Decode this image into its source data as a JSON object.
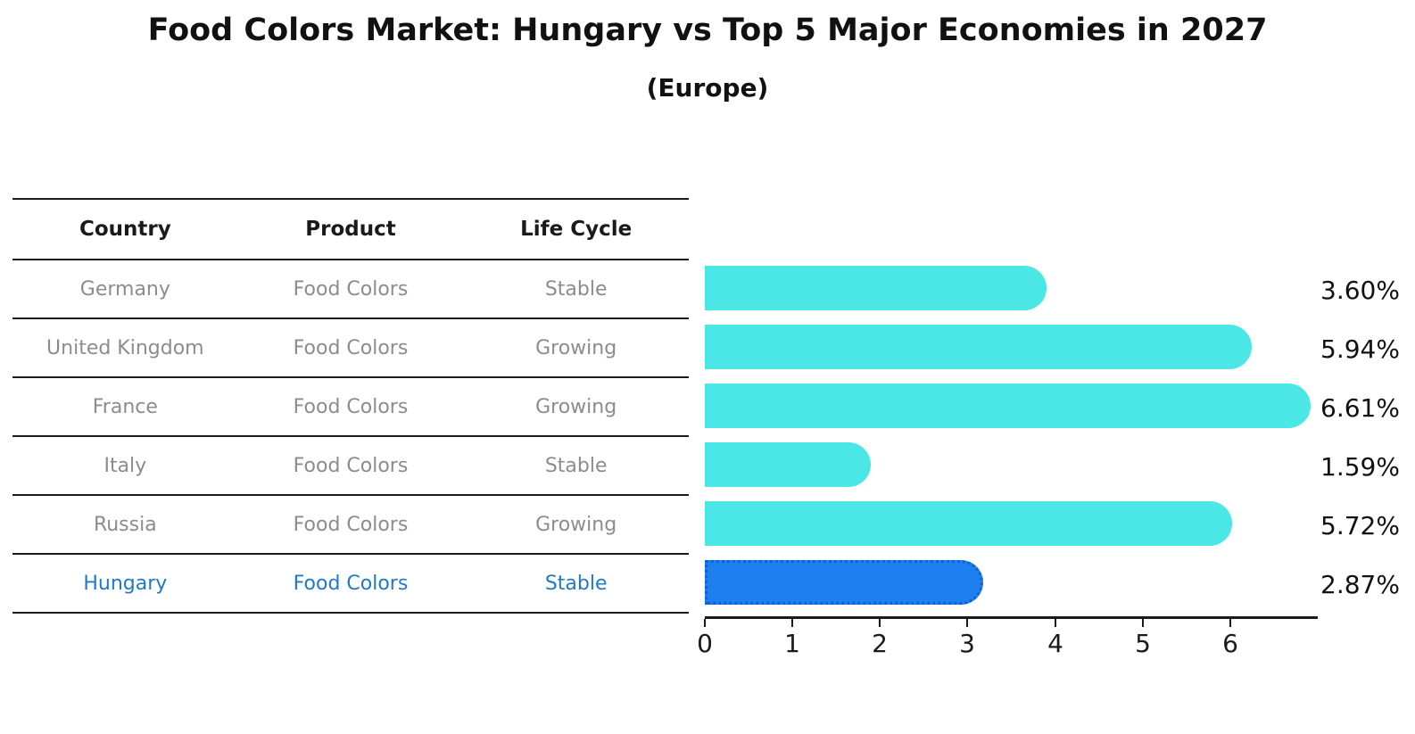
{
  "title": "Food Colors Market: Hungary vs Top 5 Major Economies in 2027",
  "subtitle": "(Europe)",
  "table": {
    "headers": [
      "Country",
      "Product",
      "Life Cycle"
    ],
    "rows": [
      {
        "country": "Germany",
        "product": "Food Colors",
        "life_cycle": "Stable",
        "highlight": false
      },
      {
        "country": "United Kingdom",
        "product": "Food Colors",
        "life_cycle": "Growing",
        "highlight": false
      },
      {
        "country": "France",
        "product": "Food Colors",
        "life_cycle": "Growing",
        "highlight": false
      },
      {
        "country": "Italy",
        "product": "Food Colors",
        "life_cycle": "Stable",
        "highlight": false
      },
      {
        "country": "Russia",
        "product": "Food Colors",
        "life_cycle": "Growing",
        "highlight": true
      }
    ],
    "highlight_row": {
      "country": "Hungary",
      "product": "Food Colors",
      "life_cycle": "Stable"
    }
  },
  "chart_data": {
    "type": "bar",
    "orientation": "horizontal",
    "title": "Food Colors Market: Hungary vs Top 5 Major Economies in 2027",
    "subtitle": "(Europe)",
    "categories": [
      "Germany",
      "United Kingdom",
      "France",
      "Italy",
      "Russia",
      "Hungary"
    ],
    "values": [
      3.6,
      5.94,
      6.61,
      1.59,
      5.72,
      2.87
    ],
    "value_labels": [
      "3.60%",
      "5.94%",
      "6.61%",
      "1.59%",
      "5.72%",
      "2.87%"
    ],
    "xlabel": "",
    "ylabel": "",
    "xlim": [
      0,
      7
    ],
    "xticks": [
      0,
      1,
      2,
      3,
      4,
      5,
      6
    ],
    "grid": false,
    "legend": false,
    "highlight_index": 5,
    "colors": {
      "bar": "#4be6e6",
      "highlight_bar": "#1e80f0",
      "highlight_border": "#1061cf",
      "highlight_text": "#1f79c9",
      "row_text": "#8c8c8c",
      "axis_text": "#1a1a1a"
    }
  }
}
